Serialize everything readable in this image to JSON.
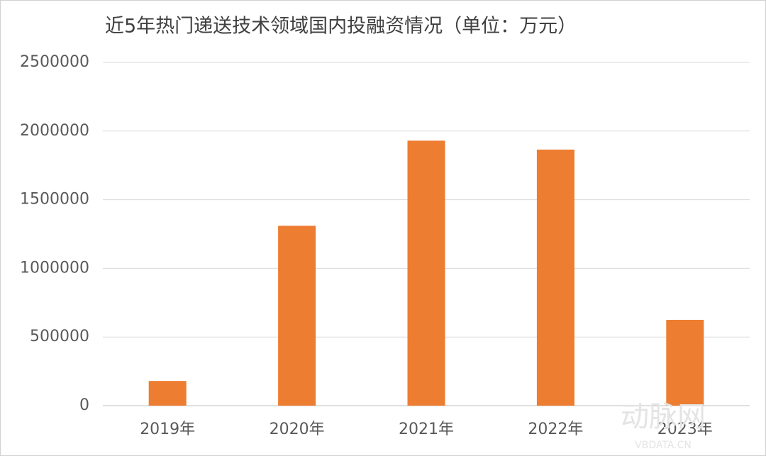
{
  "chart_data": {
    "type": "bar",
    "title": "近5年热门递送技术领域国内投融资情况（单位：万元）",
    "categories": [
      "2019年",
      "2020年",
      "2021年",
      "2022年",
      "2023年"
    ],
    "values": [
      180000,
      1310000,
      1930000,
      1865000,
      625000
    ],
    "color": "#ed7d31",
    "ylim": [
      0,
      2500000
    ],
    "yticks": [
      0,
      500000,
      1000000,
      1500000,
      2000000,
      2500000
    ],
    "grid": true,
    "watermark": "动脉网",
    "watermark_sub": "VBDATA.CN"
  }
}
